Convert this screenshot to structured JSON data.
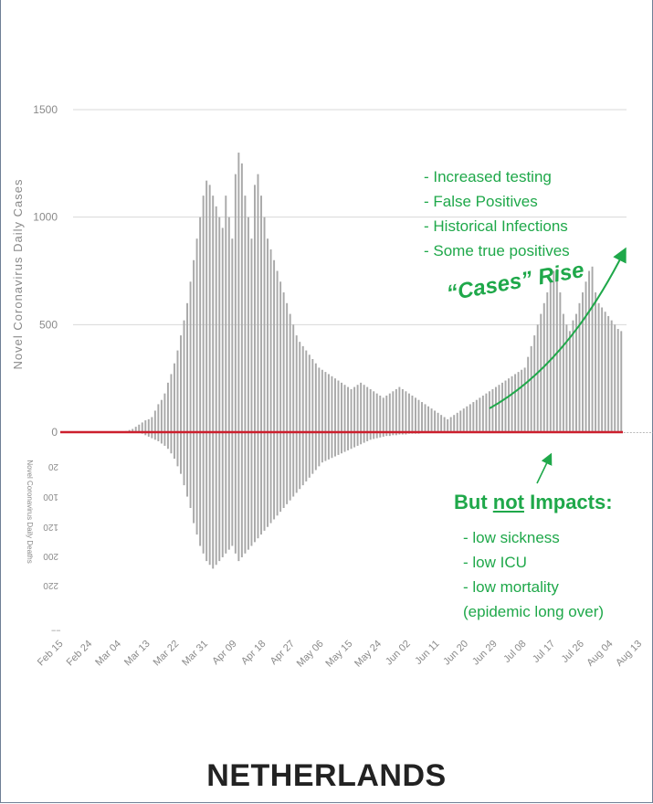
{
  "chart_data": {
    "type": "bar",
    "ylabel": "Novel Coronavirus Daily Cases",
    "ylabel_deaths": "Novel Coronavirus Daily Deaths",
    "yticks": [
      "1500",
      "1000",
      "500",
      "0"
    ],
    "ylim": [
      0,
      1500
    ],
    "death_ticks": [
      "20",
      "100",
      "120",
      "200",
      "220"
    ],
    "x_ticks": [
      "Feb 15",
      "Feb 24",
      "Mar 04",
      "Mar 13",
      "Mar 22",
      "Mar 31",
      "Apr 09",
      "Apr 18",
      "Apr 27",
      "May 06",
      "May 15",
      "May 24",
      "Jun 02",
      "Jun 11",
      "Jun 20",
      "Jun 29",
      "Jul 08",
      "Jul 17",
      "Jul 26",
      "Aug 04",
      "Aug 13"
    ],
    "x_tick_day_index": [
      0,
      9,
      18,
      27,
      36,
      45,
      54,
      63,
      72,
      81,
      90,
      99,
      108,
      117,
      126,
      135,
      144,
      153,
      162,
      171,
      180
    ],
    "start_date": "Feb 15",
    "series": [
      {
        "values": [
          0,
          0,
          0,
          0,
          0,
          0,
          0,
          0,
          0,
          0,
          0,
          0,
          0,
          0,
          0,
          0,
          0,
          0,
          0,
          2,
          5,
          10,
          15,
          25,
          35,
          45,
          55,
          60,
          70,
          100,
          130,
          150,
          180,
          230,
          270,
          320,
          380,
          450,
          520,
          600,
          700,
          800,
          900,
          1000,
          1100,
          1170,
          1150,
          1100,
          1050,
          1000,
          950,
          1100,
          1000,
          900,
          1200,
          1300,
          1250,
          1100,
          1000,
          900,
          1150,
          1200,
          1100,
          1000,
          900,
          850,
          800,
          750,
          700,
          650,
          600,
          550,
          500,
          450,
          420,
          400,
          380,
          360,
          340,
          320,
          300,
          290,
          280,
          270,
          260,
          250,
          240,
          230,
          220,
          210,
          200,
          210,
          220,
          230,
          220,
          210,
          200,
          190,
          180,
          170,
          160,
          170,
          180,
          190,
          200,
          210,
          200,
          190,
          180,
          170,
          160,
          150,
          140,
          130,
          120,
          110,
          100,
          90,
          80,
          70,
          60,
          70,
          80,
          90,
          100,
          110,
          120,
          130,
          140,
          150,
          160,
          170,
          180,
          190,
          200,
          210,
          220,
          230,
          240,
          250,
          260,
          270,
          280,
          290,
          300,
          350,
          400,
          450,
          500,
          550,
          600,
          650,
          700,
          750,
          760,
          650,
          550,
          500,
          470,
          520,
          550,
          600,
          650,
          700,
          750,
          770,
          650,
          600,
          580,
          560,
          540,
          520,
          500,
          480,
          470
        ]
      },
      {
        "values": [
          0,
          0,
          0,
          0,
          0,
          0,
          0,
          0,
          0,
          0,
          0,
          0,
          0,
          0,
          0,
          0,
          0,
          0,
          0,
          0,
          0,
          0,
          0,
          0,
          0,
          2,
          4,
          6,
          8,
          10,
          12,
          15,
          18,
          22,
          28,
          35,
          45,
          55,
          70,
          85,
          100,
          120,
          135,
          150,
          160,
          170,
          175,
          180,
          175,
          170,
          165,
          160,
          155,
          150,
          160,
          170,
          165,
          160,
          155,
          150,
          145,
          140,
          135,
          130,
          125,
          120,
          115,
          110,
          105,
          100,
          95,
          90,
          85,
          80,
          75,
          70,
          65,
          60,
          55,
          50,
          45,
          40,
          38,
          36,
          34,
          32,
          30,
          28,
          26,
          24,
          22,
          20,
          18,
          16,
          14,
          12,
          10,
          9,
          8,
          7,
          6,
          5,
          5,
          4,
          4,
          3,
          3,
          3,
          2,
          2,
          2,
          2,
          1,
          1,
          1,
          1,
          1,
          1,
          1,
          1,
          1,
          1,
          1,
          1,
          1,
          1,
          1,
          1,
          1,
          1,
          1,
          1,
          1,
          1,
          1,
          1,
          1,
          1,
          1,
          1,
          1,
          1,
          1,
          1,
          1,
          1,
          1,
          1,
          1,
          1,
          1,
          1,
          1,
          1,
          1,
          1,
          1,
          1,
          1,
          1,
          1,
          1,
          1,
          1,
          1,
          1,
          1,
          1,
          1,
          1,
          1,
          1,
          1,
          1,
          1,
          1,
          1,
          1,
          1,
          1,
          1,
          1,
          1,
          1,
          1,
          1
        ]
      }
    ]
  },
  "annotations": {
    "reasons": [
      "- Increased testing",
      "- False Positives",
      "- Historical Infections",
      "- Some true positives"
    ],
    "cases_rise": "“Cases” Rise",
    "impacts_prefix": "But ",
    "impacts_underlined": "not",
    "impacts_suffix": " Impacts:",
    "impacts": [
      "- low sickness",
      "- low ICU",
      "- low mortality",
      "(epidemic long over)"
    ]
  },
  "country": "NETHERLANDS",
  "colors": {
    "bars": "#a9a9a9",
    "zero_line": "#cc1f2d",
    "annotation": "#1fa84a",
    "grid": "#d8d8d8",
    "axis_text": "#8a8a8a"
  }
}
